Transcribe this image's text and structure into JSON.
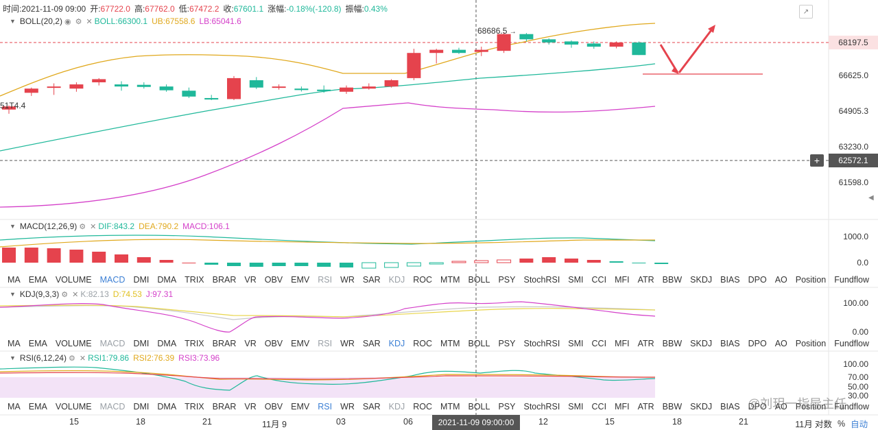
{
  "info_bar": {
    "time_label": "时间:",
    "time": "2021-11-09 09:00",
    "open_label": "开:",
    "open": "67722.0",
    "high_label": "高:",
    "high": "67762.0",
    "low_label": "低:",
    "low": "67472.2",
    "close_label": "收:",
    "close": "67601.1",
    "change_label": "涨幅:",
    "change": "-0.18%(-120.8)",
    "amplitude_label": "振幅:",
    "amplitude": "0.43%"
  },
  "boll": {
    "name": "BOLL(20,2)",
    "boll": "BOLL:66300.1",
    "ub": "UB:67558.6",
    "lb": "LB:65041.6"
  },
  "macd": {
    "name": "MACD(12,26,9)",
    "dif": "DIF:843.2",
    "dea": "DEA:790.2",
    "macd": "MACD:106.1"
  },
  "kdj": {
    "name": "KDJ(9,3,3)",
    "k": "K:82.13",
    "d": "D:74.53",
    "j": "J:97.31"
  },
  "rsi": {
    "name": "RSI(6,12,24)",
    "rsi1": "RSI1:79.86",
    "rsi2": "RSI2:76.39",
    "rsi3": "RSI3:73.96"
  },
  "price_axis": [
    "68197.5",
    "66625.0",
    "64905.3",
    "63230.0",
    "62572.1",
    "61598.0"
  ],
  "current_price": "68197.5",
  "crosshair_price": "62572.1",
  "peak_label": "68686.5",
  "left_edge_label": "51T4.4",
  "macd_axis": [
    "1000.0",
    "0.0"
  ],
  "kdj_axis": [
    "100.00",
    "0.00"
  ],
  "rsi_axis": [
    "100.00",
    "70.00",
    "50.00",
    "30.00"
  ],
  "indicator_tabs": [
    "MA",
    "EMA",
    "VOLUME",
    "MACD",
    "DMI",
    "DMA",
    "TRIX",
    "BRAR",
    "VR",
    "OBV",
    "EMV",
    "RSI",
    "WR",
    "SAR",
    "KDJ",
    "ROC",
    "MTM",
    "BOLL",
    "PSY",
    "StochRSI",
    "SMI",
    "CCI",
    "MFI",
    "ATR",
    "BBW",
    "SKDJ",
    "BIAS",
    "DPO",
    "AO",
    "Position",
    "Fundflow"
  ],
  "x_axis": [
    "15",
    "18",
    "21",
    "11月 9",
    "03",
    "06",
    "12",
    "15",
    "18",
    "21",
    "11月"
  ],
  "crosshair_time": "2021-11-09 09:00:00",
  "bottom_right": {
    "log": "对数",
    "percent": "%",
    "auto": "自动"
  },
  "watermark": "@刘玥一指导主任",
  "colors": {
    "up": "#e5434d",
    "down": "#1fb89a",
    "mid": "#1fb89a",
    "ub": "#e0a81c",
    "lb": "#d43fc9",
    "accent": "#3b7fd4"
  },
  "candles": [
    {
      "o": 65000,
      "h": 65200,
      "l": 64800,
      "c": 65150
    },
    {
      "o": 65800,
      "h": 66050,
      "l": 65650,
      "c": 66000
    },
    {
      "o": 66050,
      "h": 66250,
      "l": 65700,
      "c": 66100
    },
    {
      "o": 66000,
      "h": 66300,
      "l": 65850,
      "c": 66200
    },
    {
      "o": 66300,
      "h": 66500,
      "l": 66150,
      "c": 66450
    },
    {
      "o": 66200,
      "h": 66350,
      "l": 65900,
      "c": 66100
    },
    {
      "o": 66180,
      "h": 66300,
      "l": 66000,
      "c": 66080
    },
    {
      "o": 66100,
      "h": 66200,
      "l": 65850,
      "c": 65920
    },
    {
      "o": 65900,
      "h": 66050,
      "l": 65550,
      "c": 65620
    },
    {
      "o": 65550,
      "h": 65700,
      "l": 65450,
      "c": 65480
    },
    {
      "o": 65500,
      "h": 66600,
      "l": 65450,
      "c": 66500
    },
    {
      "o": 66400,
      "h": 66550,
      "l": 65980,
      "c": 66050
    },
    {
      "o": 66050,
      "h": 66200,
      "l": 65950,
      "c": 66100
    },
    {
      "o": 66000,
      "h": 66100,
      "l": 65860,
      "c": 65930
    },
    {
      "o": 65950,
      "h": 66150,
      "l": 65800,
      "c": 65880
    },
    {
      "o": 65850,
      "h": 66150,
      "l": 65750,
      "c": 66050
    },
    {
      "o": 66000,
      "h": 66250,
      "l": 65950,
      "c": 66100
    },
    {
      "o": 66100,
      "h": 66450,
      "l": 66050,
      "c": 66400
    },
    {
      "o": 66500,
      "h": 67900,
      "l": 66400,
      "c": 67700
    },
    {
      "o": 67700,
      "h": 67900,
      "l": 67200,
      "c": 67850
    },
    {
      "o": 67850,
      "h": 67950,
      "l": 67650,
      "c": 67700
    },
    {
      "o": 67750,
      "h": 68000,
      "l": 67550,
      "c": 67850
    },
    {
      "o": 67800,
      "h": 68686.5,
      "l": 67700,
      "c": 68600
    },
    {
      "o": 68600,
      "h": 68650,
      "l": 68250,
      "c": 68350
    },
    {
      "o": 68350,
      "h": 68400,
      "l": 68100,
      "c": 68200
    },
    {
      "o": 68250,
      "h": 68300,
      "l": 67950,
      "c": 68100
    },
    {
      "o": 68150,
      "h": 68250,
      "l": 67900,
      "c": 68000
    },
    {
      "o": 68000,
      "h": 68250,
      "l": 67920,
      "c": 68200
    },
    {
      "o": 68200,
      "h": 68250,
      "l": 67601,
      "c": 67601
    }
  ]
}
